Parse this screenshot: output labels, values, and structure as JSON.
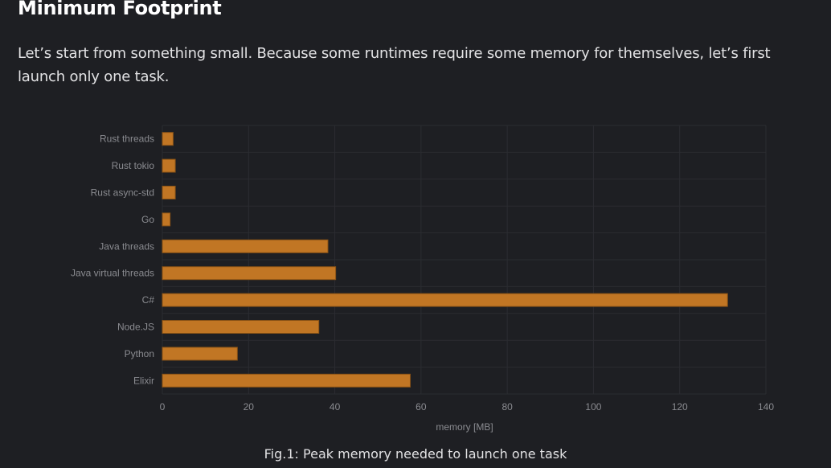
{
  "page": {
    "heading": "Minimum Footprint",
    "intro": "Let’s start from something small. Because some runtimes require some memory for themselves, let’s first launch only one task.",
    "caption": "Fig.1: Peak memory needed to launch one task"
  },
  "colors": {
    "bar": "#c17624",
    "bar_edge": "#8a5316",
    "background": "#1e1f23",
    "grid": "#2b2c31"
  },
  "chart_data": {
    "type": "bar",
    "orientation": "horizontal",
    "categories": [
      "Rust threads",
      "Rust tokio",
      "Rust async-std",
      "Go",
      "Java threads",
      "Java virtual threads",
      "C#",
      "Node.JS",
      "Python",
      "Elixir"
    ],
    "values": [
      2.5,
      3,
      3,
      1.8,
      38.4,
      40.2,
      131.1,
      36.3,
      17.4,
      57.5
    ],
    "xlabel": "memory [MB]",
    "ylabel": "",
    "xlim": [
      0,
      140
    ],
    "xticks": [
      0,
      20,
      40,
      60,
      80,
      100,
      120,
      140
    ],
    "grid": true
  }
}
